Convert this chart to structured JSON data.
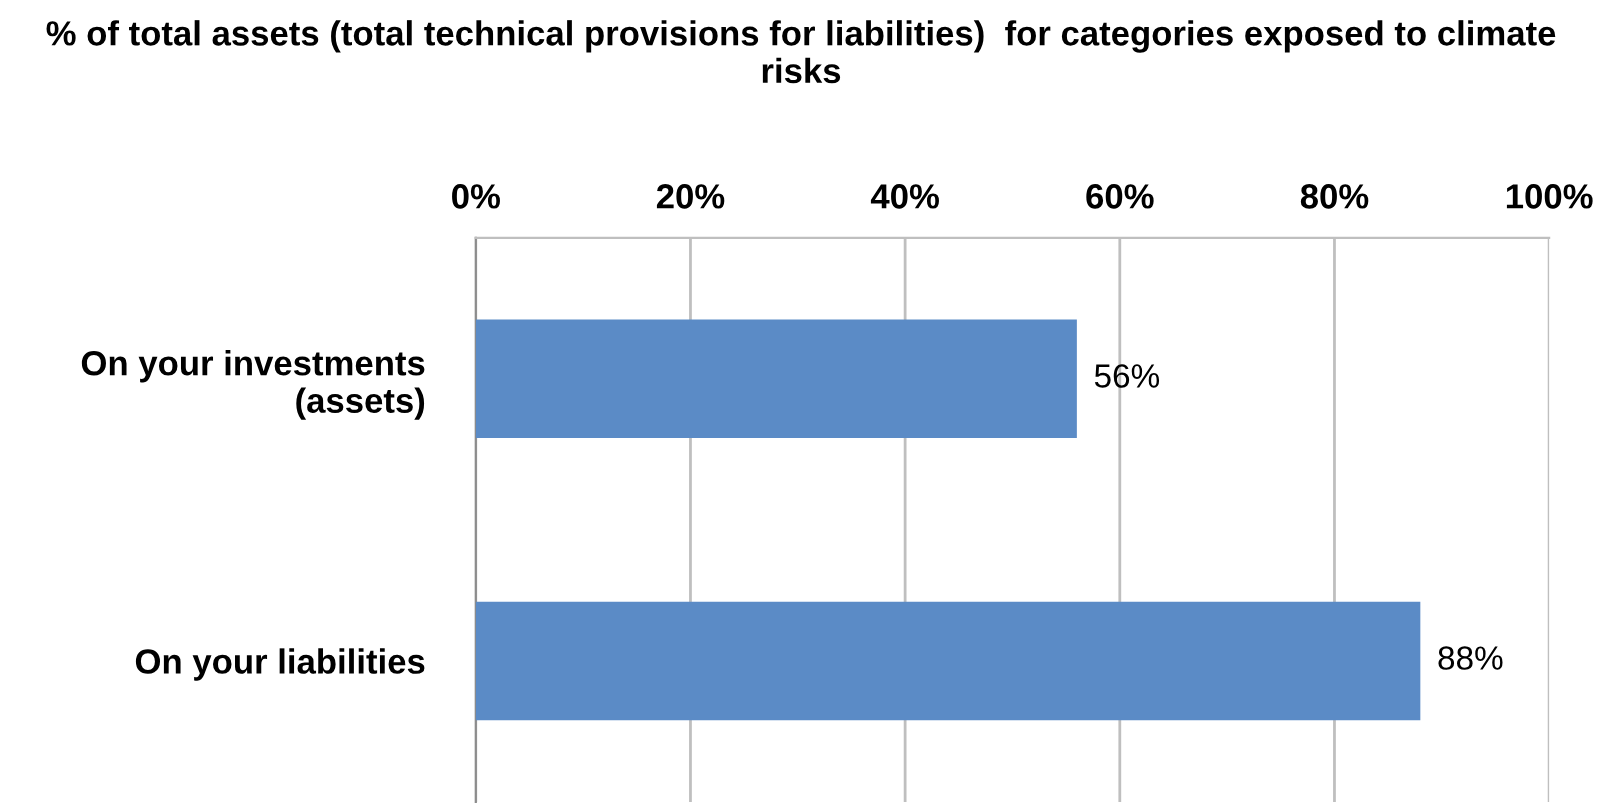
{
  "chart_data": {
    "type": "bar",
    "orientation": "horizontal",
    "title": "% of total assets (total technical provisions for liabilities)  for categories exposed to climate risks",
    "categories": [
      "On your investments\n(assets)",
      "On your liabilities"
    ],
    "values": [
      56,
      88
    ],
    "color": "#5b8bc6",
    "value_labels": [
      "56%",
      "88%"
    ],
    "xlim": [
      0,
      100
    ],
    "xticks": [
      {
        "value": 0,
        "label": "0%"
      },
      {
        "value": 20,
        "label": "20%"
      },
      {
        "value": 40,
        "label": "40%"
      },
      {
        "value": 60,
        "label": "60%"
      },
      {
        "value": 80,
        "label": "80%"
      },
      {
        "value": 100,
        "label": "100%"
      }
    ],
    "grid": "x",
    "legend": false
  }
}
